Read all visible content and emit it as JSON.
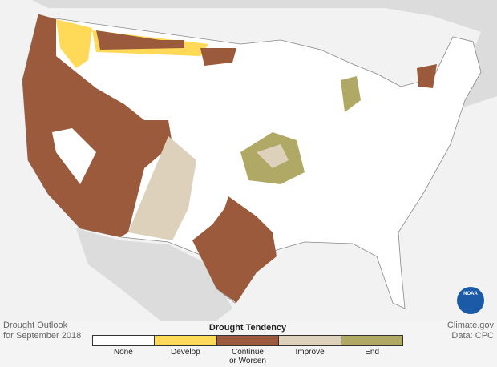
{
  "map": {
    "title": "Drought Outlook",
    "subtitle": "for September 2018",
    "logo": "NOAA",
    "credit": "Climate.gov",
    "source": "Data: CPC",
    "legend": {
      "title": "Drought Tendency",
      "items": [
        {
          "label": "None",
          "color": "#ffffff"
        },
        {
          "label": "Develop",
          "color": "#ffd957"
        },
        {
          "label": "Continue or Worsen",
          "color": "#9c5a3c"
        },
        {
          "label": "Improve",
          "color": "#ddd1bc"
        },
        {
          "label": "End",
          "color": "#b0a865"
        }
      ]
    }
  }
}
